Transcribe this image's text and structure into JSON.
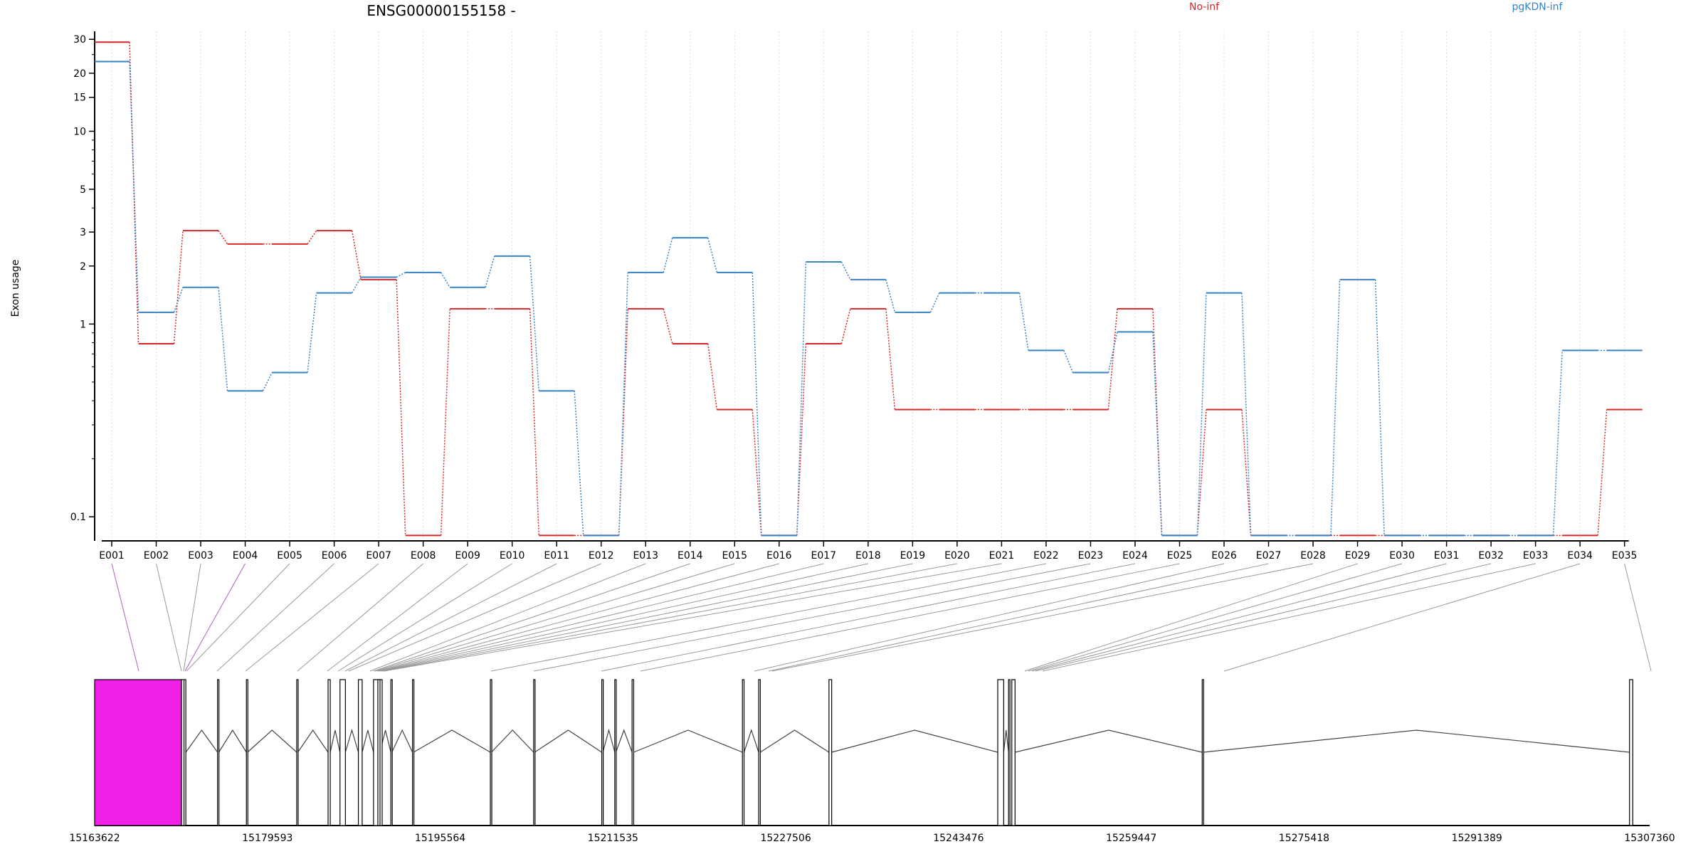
{
  "chart_data": {
    "type": "line",
    "title": "ENSG00000155158 -",
    "xlabel": "",
    "ylabel": "Exon usage",
    "y_scale": "log",
    "ylim": [
      0.075,
      33
    ],
    "y_ticks": [
      0.1,
      1,
      2,
      3,
      5,
      10,
      15,
      20,
      30
    ],
    "y_tick_labels": [
      "0.1",
      "1",
      "2",
      "3",
      "5",
      "10",
      "15",
      "20",
      "30"
    ],
    "grid": "vertical-dotted",
    "legend_placement": "top",
    "colors": {
      "No-inf": "#d62728",
      "pgKDN-inf": "#3a82c6",
      "exon_highlight": "#f020e6",
      "connector": "#999999",
      "connector_highlight": "#b060c0"
    },
    "categories": [
      "E001",
      "E002",
      "E003",
      "E004",
      "E005",
      "E006",
      "E007",
      "E008",
      "E009",
      "E010",
      "E011",
      "E012",
      "E013",
      "E014",
      "E015",
      "E016",
      "E017",
      "E018",
      "E019",
      "E020",
      "E021",
      "E022",
      "E023",
      "E024",
      "E025",
      "E026",
      "E027",
      "E028",
      "E029",
      "E030",
      "E031",
      "E032",
      "E033",
      "E034",
      "E035"
    ],
    "series": [
      {
        "name": "No-inf",
        "color": "#d62728",
        "values": [
          29,
          0.79,
          3.05,
          2.6,
          2.6,
          3.05,
          1.7,
          0.08,
          1.2,
          1.2,
          0.08,
          0.08,
          1.2,
          0.79,
          0.36,
          0.08,
          0.79,
          1.2,
          0.36,
          0.36,
          0.36,
          0.36,
          0.36,
          1.2,
          0.08,
          0.36,
          0.08,
          0.08,
          0.08,
          0.08,
          0.08,
          0.08,
          0.08,
          0.08,
          0.36
        ]
      },
      {
        "name": "pgKDN-inf",
        "color": "#3a82c6",
        "values": [
          23,
          1.15,
          1.55,
          0.45,
          0.56,
          1.45,
          1.75,
          1.85,
          1.55,
          2.25,
          0.45,
          0.08,
          1.85,
          2.8,
          1.85,
          0.08,
          2.1,
          1.7,
          1.15,
          1.45,
          1.45,
          0.73,
          0.56,
          0.91,
          0.08,
          1.45,
          0.08,
          0.08,
          1.7,
          0.08,
          0.08,
          0.08,
          0.08,
          0.73,
          0.73
        ]
      }
    ],
    "gene_model": {
      "coordinate_ticks": [
        "15163622",
        "15179593",
        "15195564",
        "15211535",
        "15227506",
        "15243476",
        "15259447",
        "15275418",
        "15291389",
        "15307360"
      ],
      "range": [
        15163622,
        15307360
      ],
      "exon_starts": [
        15163622,
        15171650,
        15171880,
        15174980,
        15177650,
        15182300,
        15185200,
        15186300,
        15188000,
        15189400,
        15189800,
        15191000,
        15193000,
        15200200,
        15204200,
        15210500,
        15211700,
        15213300,
        15223500,
        15225000,
        15231500,
        15247100,
        15248100,
        15248400,
        15266000,
        15305500
      ],
      "exon_ends": [
        15171650,
        15171900,
        15172050,
        15175100,
        15177750,
        15182400,
        15185400,
        15186800,
        15188350,
        15190200,
        15190000,
        15191100,
        15193100,
        15200300,
        15204300,
        15210600,
        15211800,
        15213450,
        15223650,
        15225150,
        15231750,
        15247650,
        15248200,
        15248700,
        15266100,
        15305800
      ],
      "highlighted_exon": "E001"
    }
  }
}
